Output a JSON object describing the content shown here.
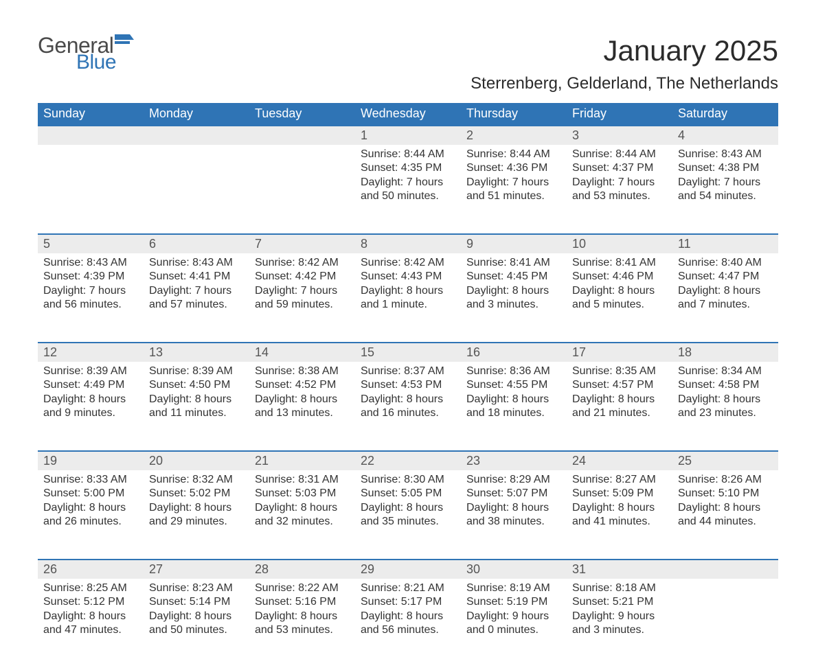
{
  "logo": {
    "word1": "General",
    "word2": "Blue",
    "word1_color": "#4a4a4a",
    "word2_color": "#2f74b5",
    "flag_color": "#2f74b5"
  },
  "header": {
    "month_title": "January 2025",
    "location": "Sterrenberg, Gelderland, The Netherlands"
  },
  "style": {
    "header_bg": "#2f74b5",
    "header_text": "#ffffff",
    "daynum_bg": "#ececec",
    "row_divider": "#2f74b5",
    "body_text": "#333333",
    "page_bg": "#ffffff",
    "title_fontsize": 42,
    "location_fontsize": 24,
    "dayheader_fontsize": 18,
    "daynum_fontsize": 18,
    "body_fontsize": 16
  },
  "day_headers": [
    "Sunday",
    "Monday",
    "Tuesday",
    "Wednesday",
    "Thursday",
    "Friday",
    "Saturday"
  ],
  "weeks": [
    [
      null,
      null,
      null,
      {
        "n": "1",
        "sunrise": "Sunrise: 8:44 AM",
        "sunset": "Sunset: 4:35 PM",
        "day1": "Daylight: 7 hours",
        "day2": "and 50 minutes."
      },
      {
        "n": "2",
        "sunrise": "Sunrise: 8:44 AM",
        "sunset": "Sunset: 4:36 PM",
        "day1": "Daylight: 7 hours",
        "day2": "and 51 minutes."
      },
      {
        "n": "3",
        "sunrise": "Sunrise: 8:44 AM",
        "sunset": "Sunset: 4:37 PM",
        "day1": "Daylight: 7 hours",
        "day2": "and 53 minutes."
      },
      {
        "n": "4",
        "sunrise": "Sunrise: 8:43 AM",
        "sunset": "Sunset: 4:38 PM",
        "day1": "Daylight: 7 hours",
        "day2": "and 54 minutes."
      }
    ],
    [
      {
        "n": "5",
        "sunrise": "Sunrise: 8:43 AM",
        "sunset": "Sunset: 4:39 PM",
        "day1": "Daylight: 7 hours",
        "day2": "and 56 minutes."
      },
      {
        "n": "6",
        "sunrise": "Sunrise: 8:43 AM",
        "sunset": "Sunset: 4:41 PM",
        "day1": "Daylight: 7 hours",
        "day2": "and 57 minutes."
      },
      {
        "n": "7",
        "sunrise": "Sunrise: 8:42 AM",
        "sunset": "Sunset: 4:42 PM",
        "day1": "Daylight: 7 hours",
        "day2": "and 59 minutes."
      },
      {
        "n": "8",
        "sunrise": "Sunrise: 8:42 AM",
        "sunset": "Sunset: 4:43 PM",
        "day1": "Daylight: 8 hours",
        "day2": "and 1 minute."
      },
      {
        "n": "9",
        "sunrise": "Sunrise: 8:41 AM",
        "sunset": "Sunset: 4:45 PM",
        "day1": "Daylight: 8 hours",
        "day2": "and 3 minutes."
      },
      {
        "n": "10",
        "sunrise": "Sunrise: 8:41 AM",
        "sunset": "Sunset: 4:46 PM",
        "day1": "Daylight: 8 hours",
        "day2": "and 5 minutes."
      },
      {
        "n": "11",
        "sunrise": "Sunrise: 8:40 AM",
        "sunset": "Sunset: 4:47 PM",
        "day1": "Daylight: 8 hours",
        "day2": "and 7 minutes."
      }
    ],
    [
      {
        "n": "12",
        "sunrise": "Sunrise: 8:39 AM",
        "sunset": "Sunset: 4:49 PM",
        "day1": "Daylight: 8 hours",
        "day2": "and 9 minutes."
      },
      {
        "n": "13",
        "sunrise": "Sunrise: 8:39 AM",
        "sunset": "Sunset: 4:50 PM",
        "day1": "Daylight: 8 hours",
        "day2": "and 11 minutes."
      },
      {
        "n": "14",
        "sunrise": "Sunrise: 8:38 AM",
        "sunset": "Sunset: 4:52 PM",
        "day1": "Daylight: 8 hours",
        "day2": "and 13 minutes."
      },
      {
        "n": "15",
        "sunrise": "Sunrise: 8:37 AM",
        "sunset": "Sunset: 4:53 PM",
        "day1": "Daylight: 8 hours",
        "day2": "and 16 minutes."
      },
      {
        "n": "16",
        "sunrise": "Sunrise: 8:36 AM",
        "sunset": "Sunset: 4:55 PM",
        "day1": "Daylight: 8 hours",
        "day2": "and 18 minutes."
      },
      {
        "n": "17",
        "sunrise": "Sunrise: 8:35 AM",
        "sunset": "Sunset: 4:57 PM",
        "day1": "Daylight: 8 hours",
        "day2": "and 21 minutes."
      },
      {
        "n": "18",
        "sunrise": "Sunrise: 8:34 AM",
        "sunset": "Sunset: 4:58 PM",
        "day1": "Daylight: 8 hours",
        "day2": "and 23 minutes."
      }
    ],
    [
      {
        "n": "19",
        "sunrise": "Sunrise: 8:33 AM",
        "sunset": "Sunset: 5:00 PM",
        "day1": "Daylight: 8 hours",
        "day2": "and 26 minutes."
      },
      {
        "n": "20",
        "sunrise": "Sunrise: 8:32 AM",
        "sunset": "Sunset: 5:02 PM",
        "day1": "Daylight: 8 hours",
        "day2": "and 29 minutes."
      },
      {
        "n": "21",
        "sunrise": "Sunrise: 8:31 AM",
        "sunset": "Sunset: 5:03 PM",
        "day1": "Daylight: 8 hours",
        "day2": "and 32 minutes."
      },
      {
        "n": "22",
        "sunrise": "Sunrise: 8:30 AM",
        "sunset": "Sunset: 5:05 PM",
        "day1": "Daylight: 8 hours",
        "day2": "and 35 minutes."
      },
      {
        "n": "23",
        "sunrise": "Sunrise: 8:29 AM",
        "sunset": "Sunset: 5:07 PM",
        "day1": "Daylight: 8 hours",
        "day2": "and 38 minutes."
      },
      {
        "n": "24",
        "sunrise": "Sunrise: 8:27 AM",
        "sunset": "Sunset: 5:09 PM",
        "day1": "Daylight: 8 hours",
        "day2": "and 41 minutes."
      },
      {
        "n": "25",
        "sunrise": "Sunrise: 8:26 AM",
        "sunset": "Sunset: 5:10 PM",
        "day1": "Daylight: 8 hours",
        "day2": "and 44 minutes."
      }
    ],
    [
      {
        "n": "26",
        "sunrise": "Sunrise: 8:25 AM",
        "sunset": "Sunset: 5:12 PM",
        "day1": "Daylight: 8 hours",
        "day2": "and 47 minutes."
      },
      {
        "n": "27",
        "sunrise": "Sunrise: 8:23 AM",
        "sunset": "Sunset: 5:14 PM",
        "day1": "Daylight: 8 hours",
        "day2": "and 50 minutes."
      },
      {
        "n": "28",
        "sunrise": "Sunrise: 8:22 AM",
        "sunset": "Sunset: 5:16 PM",
        "day1": "Daylight: 8 hours",
        "day2": "and 53 minutes."
      },
      {
        "n": "29",
        "sunrise": "Sunrise: 8:21 AM",
        "sunset": "Sunset: 5:17 PM",
        "day1": "Daylight: 8 hours",
        "day2": "and 56 minutes."
      },
      {
        "n": "30",
        "sunrise": "Sunrise: 8:19 AM",
        "sunset": "Sunset: 5:19 PM",
        "day1": "Daylight: 9 hours",
        "day2": "and 0 minutes."
      },
      {
        "n": "31",
        "sunrise": "Sunrise: 8:18 AM",
        "sunset": "Sunset: 5:21 PM",
        "day1": "Daylight: 9 hours",
        "day2": "and 3 minutes."
      },
      null
    ]
  ]
}
